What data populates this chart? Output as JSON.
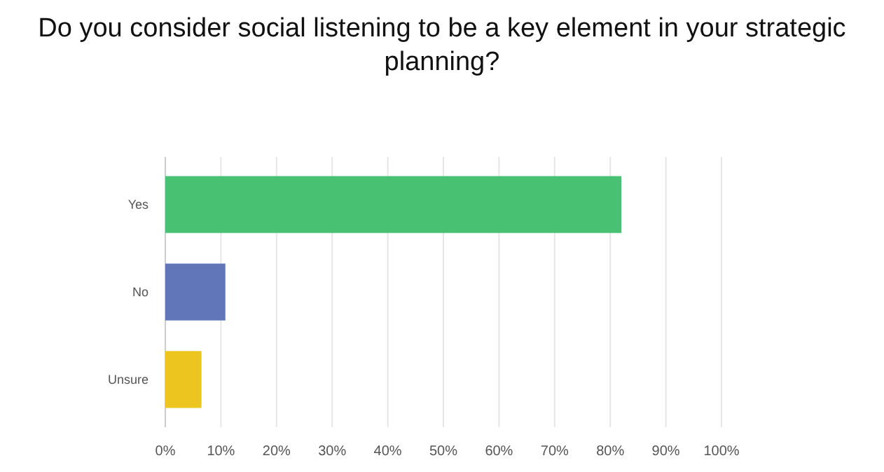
{
  "chart_data": {
    "type": "bar",
    "orientation": "horizontal",
    "title": "Do you consider social listening to be a key element in your strategic planning?",
    "categories": [
      "Yes",
      "No",
      "Unsure"
    ],
    "values": [
      82,
      10.8,
      6.5
    ],
    "colors": [
      "#48c272",
      "#6076b8",
      "#ecc51e"
    ],
    "xlim": [
      0,
      100
    ],
    "xticks": [
      {
        "value": 0,
        "label": "0%"
      },
      {
        "value": 10,
        "label": "10%"
      },
      {
        "value": 20,
        "label": "20%"
      },
      {
        "value": 30,
        "label": "30%"
      },
      {
        "value": 40,
        "label": "40%"
      },
      {
        "value": 50,
        "label": "50%"
      },
      {
        "value": 60,
        "label": "60%"
      },
      {
        "value": 70,
        "label": "70%"
      },
      {
        "value": 80,
        "label": "80%"
      },
      {
        "value": 90,
        "label": "90%"
      },
      {
        "value": 100,
        "label": "100%"
      }
    ],
    "grid": "x"
  }
}
